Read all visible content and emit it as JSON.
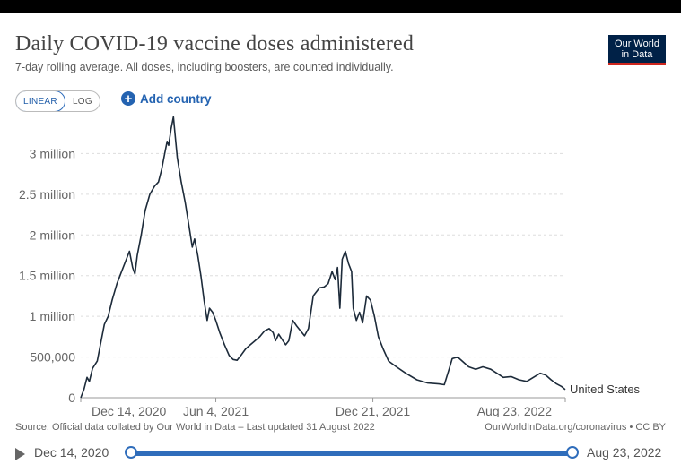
{
  "header": {
    "title": "Daily COVID-19 vaccine doses administered",
    "subtitle": "7-day rolling average. All doses, including boosters, are counted individually."
  },
  "logo": {
    "line1": "Our World",
    "line2": "in Data"
  },
  "controls": {
    "linear_label": "LINEAR",
    "log_label": "LOG",
    "add_country_label": "Add country"
  },
  "footer": {
    "source": "Source: Official data collated by Our World in Data – Last updated 31 August 2022",
    "license": "OurWorldInData.org/coronavirus • CC BY"
  },
  "timeline": {
    "start": "Dec 14, 2020",
    "end": "Aug 23, 2022"
  },
  "colors": {
    "line": "#1d2b3a",
    "accent": "#2f6dbb",
    "grid": "#dddddd"
  },
  "chart_data": {
    "type": "line",
    "xlabel": "",
    "ylabel": "",
    "ylim": [
      0,
      3500000
    ],
    "yticks": [
      {
        "value": 0,
        "label": "0"
      },
      {
        "value": 500000,
        "label": "500,000"
      },
      {
        "value": 1000000,
        "label": "1 million"
      },
      {
        "value": 1500000,
        "label": "1.5 million"
      },
      {
        "value": 2000000,
        "label": "2 million"
      },
      {
        "value": 2500000,
        "label": "2.5 million"
      },
      {
        "value": 3000000,
        "label": "3 million"
      }
    ],
    "xlim": [
      "2020-12-14",
      "2022-08-23"
    ],
    "xticks": [
      {
        "value": "2020-12-14",
        "label": "Dec 14, 2020"
      },
      {
        "value": "2021-06-04",
        "label": "Jun 4, 2021"
      },
      {
        "value": "2021-12-21",
        "label": "Dec 21, 2021"
      },
      {
        "value": "2022-08-23",
        "label": "Aug 23, 2022"
      }
    ],
    "grid": true,
    "series": [
      {
        "name": "United States",
        "points": [
          [
            "2020-12-14",
            0
          ],
          [
            "2020-12-18",
            100000
          ],
          [
            "2020-12-22",
            250000
          ],
          [
            "2020-12-25",
            200000
          ],
          [
            "2020-12-29",
            360000
          ],
          [
            "2021-01-04",
            450000
          ],
          [
            "2021-01-08",
            650000
          ],
          [
            "2021-01-13",
            900000
          ],
          [
            "2021-01-18",
            1000000
          ],
          [
            "2021-01-23",
            1200000
          ],
          [
            "2021-01-29",
            1400000
          ],
          [
            "2021-02-04",
            1550000
          ],
          [
            "2021-02-10",
            1700000
          ],
          [
            "2021-02-14",
            1800000
          ],
          [
            "2021-02-18",
            1600000
          ],
          [
            "2021-02-21",
            1520000
          ],
          [
            "2021-02-24",
            1750000
          ],
          [
            "2021-03-01",
            2000000
          ],
          [
            "2021-03-06",
            2300000
          ],
          [
            "2021-03-12",
            2500000
          ],
          [
            "2021-03-18",
            2600000
          ],
          [
            "2021-03-23",
            2650000
          ],
          [
            "2021-03-27",
            2800000
          ],
          [
            "2021-03-31",
            3000000
          ],
          [
            "2021-04-03",
            3150000
          ],
          [
            "2021-04-05",
            3100000
          ],
          [
            "2021-04-08",
            3300000
          ],
          [
            "2021-04-11",
            3450000
          ],
          [
            "2021-04-13",
            3250000
          ],
          [
            "2021-04-16",
            2950000
          ],
          [
            "2021-04-21",
            2650000
          ],
          [
            "2021-04-26",
            2400000
          ],
          [
            "2021-05-01",
            2100000
          ],
          [
            "2021-05-05",
            1850000
          ],
          [
            "2021-05-08",
            1950000
          ],
          [
            "2021-05-12",
            1750000
          ],
          [
            "2021-05-16",
            1500000
          ],
          [
            "2021-05-20",
            1200000
          ],
          [
            "2021-05-24",
            950000
          ],
          [
            "2021-05-27",
            1100000
          ],
          [
            "2021-05-31",
            1050000
          ],
          [
            "2021-06-04",
            950000
          ],
          [
            "2021-06-09",
            800000
          ],
          [
            "2021-06-15",
            650000
          ],
          [
            "2021-06-21",
            520000
          ],
          [
            "2021-06-26",
            470000
          ],
          [
            "2021-07-01",
            460000
          ],
          [
            "2021-07-06",
            520000
          ],
          [
            "2021-07-12",
            600000
          ],
          [
            "2021-07-18",
            650000
          ],
          [
            "2021-07-24",
            700000
          ],
          [
            "2021-07-30",
            750000
          ],
          [
            "2021-08-05",
            820000
          ],
          [
            "2021-08-11",
            850000
          ],
          [
            "2021-08-16",
            800000
          ],
          [
            "2021-08-19",
            700000
          ],
          [
            "2021-08-23",
            780000
          ],
          [
            "2021-08-27",
            720000
          ],
          [
            "2021-09-01",
            650000
          ],
          [
            "2021-09-05",
            700000
          ],
          [
            "2021-09-10",
            950000
          ],
          [
            "2021-09-15",
            880000
          ],
          [
            "2021-09-20",
            820000
          ],
          [
            "2021-09-25",
            760000
          ],
          [
            "2021-09-30",
            850000
          ],
          [
            "2021-10-06",
            1250000
          ],
          [
            "2021-10-10",
            1300000
          ],
          [
            "2021-10-14",
            1350000
          ],
          [
            "2021-10-20",
            1360000
          ],
          [
            "2021-10-25",
            1400000
          ],
          [
            "2021-10-30",
            1550000
          ],
          [
            "2021-11-03",
            1450000
          ],
          [
            "2021-11-06",
            1600000
          ],
          [
            "2021-11-09",
            1100000
          ],
          [
            "2021-11-12",
            1700000
          ],
          [
            "2021-11-16",
            1800000
          ],
          [
            "2021-11-20",
            1650000
          ],
          [
            "2021-11-24",
            1550000
          ],
          [
            "2021-11-26",
            1100000
          ],
          [
            "2021-11-30",
            950000
          ],
          [
            "2021-12-04",
            1050000
          ],
          [
            "2021-12-08",
            920000
          ],
          [
            "2021-12-13",
            1250000
          ],
          [
            "2021-12-18",
            1200000
          ],
          [
            "2021-12-23",
            1000000
          ],
          [
            "2021-12-28",
            750000
          ],
          [
            "2022-01-03",
            600000
          ],
          [
            "2022-01-10",
            450000
          ],
          [
            "2022-01-20",
            380000
          ],
          [
            "2022-02-01",
            300000
          ],
          [
            "2022-02-15",
            220000
          ],
          [
            "2022-03-01",
            180000
          ],
          [
            "2022-03-15",
            170000
          ],
          [
            "2022-03-22",
            160000
          ],
          [
            "2022-03-28",
            350000
          ],
          [
            "2022-04-01",
            480000
          ],
          [
            "2022-04-08",
            500000
          ],
          [
            "2022-04-15",
            440000
          ],
          [
            "2022-04-22",
            380000
          ],
          [
            "2022-05-01",
            350000
          ],
          [
            "2022-05-10",
            380000
          ],
          [
            "2022-05-20",
            350000
          ],
          [
            "2022-05-28",
            300000
          ],
          [
            "2022-06-05",
            250000
          ],
          [
            "2022-06-15",
            260000
          ],
          [
            "2022-06-25",
            220000
          ],
          [
            "2022-07-05",
            200000
          ],
          [
            "2022-07-15",
            260000
          ],
          [
            "2022-07-22",
            300000
          ],
          [
            "2022-07-29",
            280000
          ],
          [
            "2022-08-05",
            220000
          ],
          [
            "2022-08-12",
            170000
          ],
          [
            "2022-08-18",
            140000
          ],
          [
            "2022-08-23",
            100000
          ]
        ]
      }
    ]
  }
}
